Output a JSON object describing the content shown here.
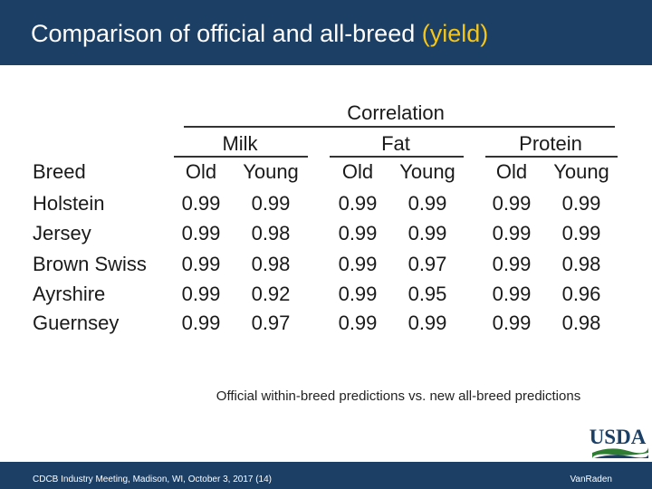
{
  "header": {
    "title_main": "Comparison of official and all-breed ",
    "title_highlight": "(yield)"
  },
  "table": {
    "group_label": "Correlation",
    "traits": [
      "Milk",
      "Fat",
      "Protein"
    ],
    "breed_header": "Breed",
    "sub_headers": [
      "Old",
      "Young"
    ],
    "rows": [
      {
        "breed": "Holstein",
        "milk": [
          "0.99",
          "0.99"
        ],
        "fat": [
          "0.99",
          "0.99"
        ],
        "protein": [
          "0.99",
          "0.99"
        ]
      },
      {
        "breed": "Jersey",
        "milk": [
          "0.99",
          "0.98"
        ],
        "fat": [
          "0.99",
          "0.99"
        ],
        "protein": [
          "0.99",
          "0.99"
        ]
      },
      {
        "breed": "Brown Swiss",
        "milk": [
          "0.99",
          "0.98"
        ],
        "fat": [
          "0.99",
          "0.97"
        ],
        "protein": [
          "0.99",
          "0.98"
        ]
      },
      {
        "breed": "Ayrshire",
        "milk": [
          "0.99",
          "0.92"
        ],
        "fat": [
          "0.99",
          "0.95"
        ],
        "protein": [
          "0.99",
          "0.96"
        ]
      },
      {
        "breed": "Guernsey",
        "milk": [
          "0.99",
          "0.97"
        ],
        "fat": [
          "0.99",
          "0.99"
        ],
        "protein": [
          "0.99",
          "0.98"
        ]
      }
    ]
  },
  "caption": "Official within-breed predictions vs. new all-breed predictions",
  "footer": {
    "left": "CDCB Industry Meeting, Madison, WI, October 3, 2017 (14)",
    "right": "VanRaden"
  },
  "logo": {
    "text": "USDA",
    "icon": "usda-logo-icon"
  },
  "colors": {
    "bar": "#1c3f66",
    "highlight": "#f5c518"
  }
}
